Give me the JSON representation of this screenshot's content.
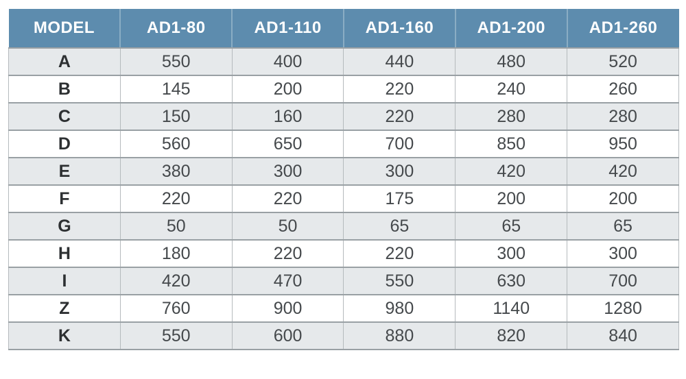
{
  "table": {
    "columns": [
      "MODEL",
      "AD1-80",
      "AD1-110",
      "AD1-160",
      "AD1-200",
      "AD1-260"
    ],
    "rows": [
      {
        "model": "A",
        "values": [
          "550",
          "400",
          "440",
          "480",
          "520"
        ]
      },
      {
        "model": "B",
        "values": [
          "145",
          "200",
          "220",
          "240",
          "260"
        ]
      },
      {
        "model": "C",
        "values": [
          "150",
          "160",
          "220",
          "280",
          "280"
        ]
      },
      {
        "model": "D",
        "values": [
          "560",
          "650",
          "700",
          "850",
          "950"
        ]
      },
      {
        "model": "E",
        "values": [
          "380",
          "300",
          "300",
          "420",
          "420"
        ]
      },
      {
        "model": "F",
        "values": [
          "220",
          "220",
          "175",
          "200",
          "200"
        ]
      },
      {
        "model": "G",
        "values": [
          "50",
          "50",
          "65",
          "65",
          "65"
        ]
      },
      {
        "model": "H",
        "values": [
          "180",
          "220",
          "220",
          "300",
          "300"
        ]
      },
      {
        "model": "I",
        "values": [
          "420",
          "470",
          "550",
          "630",
          "700"
        ]
      },
      {
        "model": "Z",
        "values": [
          "760",
          "900",
          "980",
          "1140",
          "1280"
        ]
      },
      {
        "model": "K",
        "values": [
          "550",
          "600",
          "880",
          "820",
          "840"
        ]
      }
    ]
  },
  "colors": {
    "header_bg": "#5d8cae",
    "header_text": "#ffffff",
    "header_divider": "#8aadc4",
    "row_alt_bg": "#e6e9eb",
    "row_bg": "#ffffff",
    "horizontal_line": "#99a0a4",
    "vertical_line": "#b5babd",
    "number_text": "#45494c",
    "model_text": "#2d3032"
  }
}
